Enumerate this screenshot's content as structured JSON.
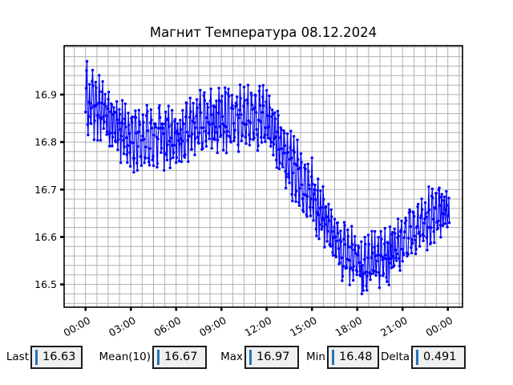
{
  "chart_data": {
    "type": "line",
    "title": "Магнит Температура 08.12.2024",
    "xlabel": "",
    "ylabel": "",
    "x_unit": "time of day (HH:MM)",
    "x_tick_hours": [
      0,
      3,
      6,
      9,
      12,
      15,
      18,
      21,
      24
    ],
    "x_tick_labels": [
      "00:00",
      "03:00",
      "06:00",
      "09:00",
      "12:00",
      "15:00",
      "18:00",
      "21:00",
      "00:00"
    ],
    "y_ticks": [
      16.5,
      16.6,
      16.7,
      16.8,
      16.9
    ],
    "y_tick_labels": [
      "16.5",
      "16.6",
      "16.7",
      "16.8",
      "16.9"
    ],
    "xlim_hours": [
      -1.42,
      24.97
    ],
    "ylim": [
      16.452,
      17.003
    ],
    "x_minor_step_hours": 0.75,
    "y_minor_step": 0.02,
    "grid": "on",
    "grid_color": "#b0b0b0",
    "axis_color": "#000000",
    "tick_label_rotation_deg": 30,
    "t_start_hours": 0,
    "t_end_hours": 24.1,
    "sampling_minutes": 2,
    "series": [
      {
        "name": "magnet-temperature",
        "color": "#0000ff",
        "marker": "dot",
        "trend_hours": [
          0,
          1,
          2,
          3,
          4,
          5,
          6,
          7,
          8,
          9,
          10,
          11,
          12,
          13,
          14,
          15,
          16,
          17,
          18,
          19,
          20,
          21,
          22,
          23,
          24
        ],
        "trend_mean": [
          16.88,
          16.87,
          16.84,
          16.8,
          16.81,
          16.81,
          16.81,
          16.83,
          16.85,
          16.84,
          16.85,
          16.85,
          16.85,
          16.79,
          16.73,
          16.69,
          16.63,
          16.57,
          16.55,
          16.55,
          16.56,
          16.59,
          16.62,
          16.645,
          16.665
        ],
        "trend_amplitude": [
          0.075,
          0.065,
          0.065,
          0.07,
          0.065,
          0.065,
          0.065,
          0.07,
          0.072,
          0.068,
          0.07,
          0.07,
          0.07,
          0.07,
          0.072,
          0.07,
          0.068,
          0.062,
          0.06,
          0.06,
          0.062,
          0.06,
          0.06,
          0.062,
          0.055
        ],
        "extremes": [
          {
            "t_hours": 0.1,
            "value": 16.97
          },
          {
            "t_hours": 18.3,
            "value": 16.48
          },
          {
            "t_hours": 24.1,
            "value": 16.63
          }
        ]
      }
    ],
    "noise": {
      "seed": 20241208,
      "base_period_minutes": 9,
      "period_jitter_minutes": 8,
      "sine_weight": 0.75,
      "jitter_fraction": 0.35
    },
    "stats": {
      "last": 16.63,
      "mean10": 16.67,
      "max": 16.97,
      "min": 16.48,
      "delta": 0.491
    }
  },
  "stats_bar": {
    "cursor_color": "#2673b8",
    "box_bg": "#f0f0f0",
    "items": [
      {
        "label": "Last",
        "value": "16.63"
      },
      {
        "label": "Mean(10)",
        "value": "16.67"
      },
      {
        "label": "Max",
        "value": "16.97"
      },
      {
        "label": "Min",
        "value": "16.48"
      },
      {
        "label": "Delta",
        "value": "0.491"
      }
    ]
  }
}
